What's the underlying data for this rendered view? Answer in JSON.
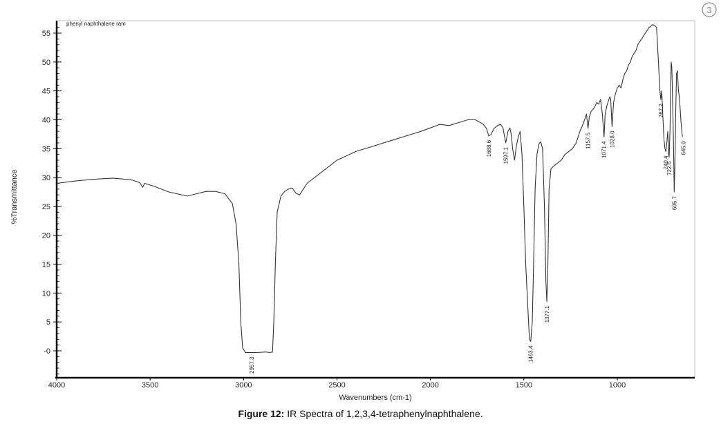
{
  "caption": {
    "prefix": "Figure 12:",
    "text": " IR Spectra of 1,2,3,4-tetraphenylnaphthalene."
  },
  "page_mark": "3",
  "chart_data": {
    "type": "line",
    "title": "",
    "sample_label": "phenyl naphthalene ram",
    "xlabel": "Wavenumbers (cm-1)",
    "ylabel": "%Transmittance",
    "xlim": [
      4000,
      650
    ],
    "ylim": [
      -5,
      57
    ],
    "x_ticks": [
      4000,
      3500,
      3000,
      2500,
      2000,
      1500,
      1000
    ],
    "y_ticks": [
      0,
      5,
      10,
      15,
      20,
      25,
      30,
      35,
      40,
      45,
      50,
      55
    ],
    "grid": false,
    "series": [
      {
        "color": "#333333",
        "points": [
          [
            4000,
            29
          ],
          [
            3900,
            29.4
          ],
          [
            3800,
            29.7
          ],
          [
            3700,
            29.9
          ],
          [
            3600,
            29.6
          ],
          [
            3555,
            29.1
          ],
          [
            3540,
            28.3
          ],
          [
            3530,
            29.0
          ],
          [
            3480,
            28.5
          ],
          [
            3400,
            27.5
          ],
          [
            3300,
            26.8
          ],
          [
            3250,
            27.2
          ],
          [
            3200,
            27.6
          ],
          [
            3150,
            27.6
          ],
          [
            3100,
            27.2
          ],
          [
            3060,
            25.5
          ],
          [
            3040,
            22.0
          ],
          [
            3025,
            15.0
          ],
          [
            3015,
            5.0
          ],
          [
            3005,
            0.5
          ],
          [
            2990,
            -0.3
          ],
          [
            2957,
            -0.3
          ],
          [
            2930,
            -0.3
          ],
          [
            2880,
            -0.2
          ],
          [
            2860,
            -0.3
          ],
          [
            2845,
            -0.2
          ],
          [
            2838,
            5.0
          ],
          [
            2830,
            15.0
          ],
          [
            2820,
            24.0
          ],
          [
            2800,
            26.8
          ],
          [
            2780,
            27.6
          ],
          [
            2760,
            28.0
          ],
          [
            2740,
            28.2
          ],
          [
            2720,
            27.3
          ],
          [
            2700,
            27.0
          ],
          [
            2680,
            28.0
          ],
          [
            2660,
            29.0
          ],
          [
            2620,
            30.0
          ],
          [
            2580,
            31.0
          ],
          [
            2500,
            33.0
          ],
          [
            2400,
            34.5
          ],
          [
            2300,
            35.5
          ],
          [
            2200,
            36.5
          ],
          [
            2100,
            37.5
          ],
          [
            2050,
            38.0
          ],
          [
            2000,
            38.6
          ],
          [
            1950,
            39.2
          ],
          [
            1900,
            39.0
          ],
          [
            1850,
            39.5
          ],
          [
            1800,
            40.0
          ],
          [
            1760,
            40.0
          ],
          [
            1720,
            39.3
          ],
          [
            1700,
            38.5
          ],
          [
            1688,
            37.2
          ],
          [
            1675,
            37.5
          ],
          [
            1660,
            38.5
          ],
          [
            1640,
            39.0
          ],
          [
            1625,
            39.2
          ],
          [
            1612,
            38.6
          ],
          [
            1597,
            36.0
          ],
          [
            1585,
            38.0
          ],
          [
            1575,
            38.6
          ],
          [
            1568,
            37.5
          ],
          [
            1560,
            35.0
          ],
          [
            1550,
            33.0
          ],
          [
            1540,
            35.5
          ],
          [
            1530,
            37.0
          ],
          [
            1520,
            38.0
          ],
          [
            1510,
            34.0
          ],
          [
            1500,
            25.0
          ],
          [
            1490,
            15.0
          ],
          [
            1475,
            5.0
          ],
          [
            1470,
            2.0
          ],
          [
            1463,
            1.6
          ],
          [
            1455,
            5.0
          ],
          [
            1448,
            15.0
          ],
          [
            1440,
            28.0
          ],
          [
            1430,
            34.0
          ],
          [
            1420,
            35.8
          ],
          [
            1410,
            36.2
          ],
          [
            1400,
            35.0
          ],
          [
            1390,
            25.0
          ],
          [
            1382,
            12.0
          ],
          [
            1377,
            8.5
          ],
          [
            1372,
            14.0
          ],
          [
            1365,
            28.0
          ],
          [
            1355,
            31.5
          ],
          [
            1340,
            32.0
          ],
          [
            1320,
            32.5
          ],
          [
            1300,
            33.0
          ],
          [
            1280,
            34.0
          ],
          [
            1260,
            34.5
          ],
          [
            1240,
            35.0
          ],
          [
            1220,
            36.0
          ],
          [
            1200,
            38.0
          ],
          [
            1180,
            39.5
          ],
          [
            1165,
            41.0
          ],
          [
            1157,
            38.5
          ],
          [
            1150,
            40.5
          ],
          [
            1140,
            41.5
          ],
          [
            1130,
            41.8
          ],
          [
            1120,
            42.3
          ],
          [
            1110,
            43.0
          ],
          [
            1100,
            42.7
          ],
          [
            1090,
            43.5
          ],
          [
            1080,
            41.0
          ],
          [
            1071,
            37.0
          ],
          [
            1065,
            41.0
          ],
          [
            1055,
            42.5
          ],
          [
            1040,
            44.0
          ],
          [
            1035,
            43.5
          ],
          [
            1028,
            38.8
          ],
          [
            1020,
            43.0
          ],
          [
            1010,
            44.5
          ],
          [
            1000,
            45.5
          ],
          [
            990,
            46.0
          ],
          [
            980,
            45.5
          ],
          [
            970,
            47.0
          ],
          [
            960,
            48.0
          ],
          [
            950,
            48.5
          ],
          [
            940,
            49.5
          ],
          [
            930,
            50.0
          ],
          [
            920,
            51.0
          ],
          [
            910,
            51.5
          ],
          [
            900,
            52.0
          ],
          [
            890,
            53.0
          ],
          [
            880,
            53.5
          ],
          [
            870,
            54.0
          ],
          [
            860,
            54.5
          ],
          [
            850,
            55.0
          ],
          [
            840,
            55.5
          ],
          [
            830,
            56.0
          ],
          [
            820,
            56.2
          ],
          [
            810,
            56.5
          ],
          [
            800,
            56.3
          ],
          [
            790,
            56.0
          ],
          [
            780,
            50.0
          ],
          [
            772,
            45.0
          ],
          [
            767,
            43.5
          ],
          [
            762,
            45.0
          ],
          [
            757,
            41.0
          ],
          [
            750,
            36.5
          ],
          [
            745,
            35.0
          ],
          [
            740.4,
            34.5
          ],
          [
            735,
            36.0
          ],
          [
            730,
            38.0
          ],
          [
            725,
            34.0
          ],
          [
            722.6,
            33.5
          ],
          [
            718,
            38.0
          ],
          [
            712,
            50.0
          ],
          [
            708,
            49.0
          ],
          [
            702,
            40.0
          ],
          [
            698,
            33.5
          ],
          [
            695.7,
            27.5
          ],
          [
            692,
            32.0
          ],
          [
            688,
            40.0
          ],
          [
            683,
            48.0
          ],
          [
            678,
            48.5
          ],
          [
            673,
            45.0
          ],
          [
            668,
            44.0
          ],
          [
            660,
            40.0
          ],
          [
            652,
            37.0
          ]
        ]
      }
    ],
    "peak_labels": [
      {
        "x": 2957.3,
        "y": -0.3,
        "label": "2957.3"
      },
      {
        "x": 1688.6,
        "y": 37.2,
        "label": "1688.6"
      },
      {
        "x": 1597.1,
        "y": 36.0,
        "label": "1597.1"
      },
      {
        "x": 1463.4,
        "y": 1.6,
        "label": "1463.4"
      },
      {
        "x": 1377.1,
        "y": 8.5,
        "label": "1377.1"
      },
      {
        "x": 1157.5,
        "y": 38.5,
        "label": "1157.5"
      },
      {
        "x": 1071.4,
        "y": 37.0,
        "label": "1071.4"
      },
      {
        "x": 1028.0,
        "y": 38.8,
        "label": "1028.0"
      },
      {
        "x": 767.2,
        "y": 43.5,
        "label": "767.2"
      },
      {
        "x": 740.4,
        "y": 34.5,
        "label": "740.4"
      },
      {
        "x": 722.6,
        "y": 33.5,
        "label": "722.6"
      },
      {
        "x": 695.7,
        "y": 27.5,
        "label": "695.7"
      },
      {
        "x": 645.9,
        "y": 37.0,
        "label": "645.9"
      }
    ]
  }
}
